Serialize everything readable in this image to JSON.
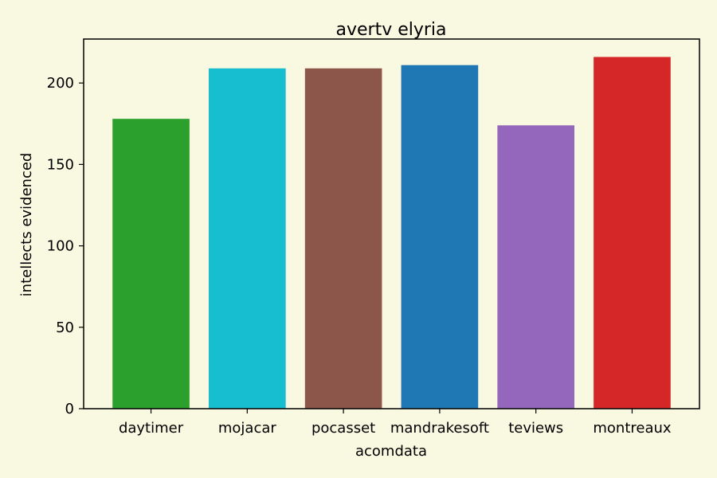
{
  "chart_data": {
    "type": "bar",
    "title": "avertv elyria",
    "xlabel": "acomdata",
    "ylabel": "intellects evidenced",
    "categories": [
      "daytimer",
      "mojacar",
      "pocasset",
      "mandrakesoft",
      "teviews",
      "montreaux"
    ],
    "values": [
      178,
      209,
      209,
      211,
      174,
      216
    ],
    "colors": [
      "#2ca02c",
      "#17becf",
      "#8c564b",
      "#1f77b4",
      "#9467bd",
      "#d62728"
    ],
    "ylim": [
      0,
      227
    ],
    "yticks": [
      0,
      50,
      100,
      150,
      200
    ],
    "grid": false,
    "legend": "none",
    "background": "#f9f8e1"
  }
}
